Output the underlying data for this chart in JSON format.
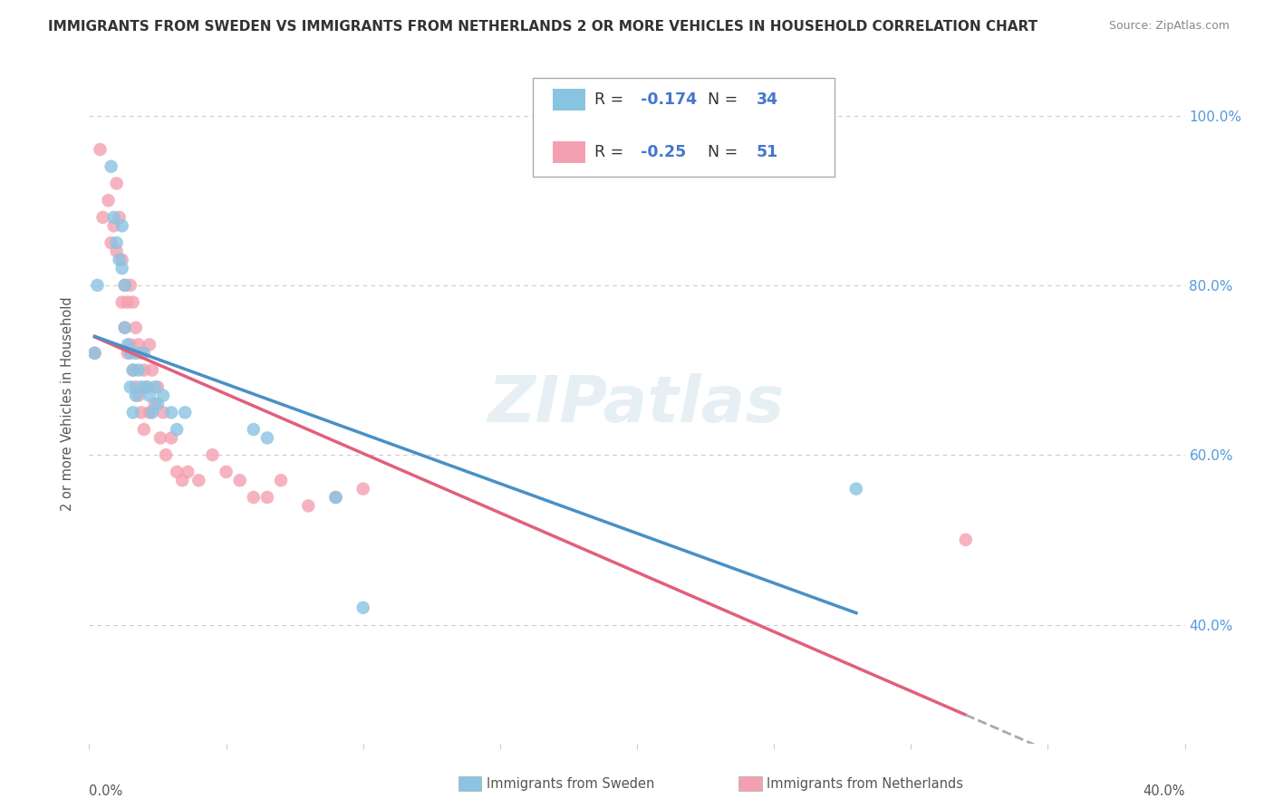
{
  "title": "IMMIGRANTS FROM SWEDEN VS IMMIGRANTS FROM NETHERLANDS 2 OR MORE VEHICLES IN HOUSEHOLD CORRELATION CHART",
  "source": "Source: ZipAtlas.com",
  "ylabel": "2 or more Vehicles in Household",
  "ytick_vals": [
    0.4,
    0.6,
    0.8,
    1.0
  ],
  "xlim": [
    0.0,
    0.4
  ],
  "ylim": [
    0.26,
    1.06
  ],
  "sweden_color": "#89c4e1",
  "sweden_color_dark": "#4a90c4",
  "netherlands_color": "#f4a0b0",
  "netherlands_color_dark": "#e0607a",
  "sweden_R": -0.174,
  "sweden_N": 34,
  "netherlands_R": -0.25,
  "netherlands_N": 51,
  "watermark": "ZIPatlas",
  "legend_label_sweden": "Immigrants from Sweden",
  "legend_label_netherlands": "Immigrants from Netherlands",
  "sweden_x": [
    0.002,
    0.003,
    0.008,
    0.009,
    0.01,
    0.011,
    0.012,
    0.012,
    0.013,
    0.013,
    0.014,
    0.015,
    0.015,
    0.016,
    0.016,
    0.017,
    0.017,
    0.018,
    0.019,
    0.02,
    0.021,
    0.022,
    0.023,
    0.024,
    0.025,
    0.027,
    0.03,
    0.032,
    0.035,
    0.06,
    0.065,
    0.09,
    0.1,
    0.28
  ],
  "sweden_y": [
    0.72,
    0.8,
    0.94,
    0.88,
    0.85,
    0.83,
    0.87,
    0.82,
    0.8,
    0.75,
    0.73,
    0.72,
    0.68,
    0.7,
    0.65,
    0.72,
    0.67,
    0.7,
    0.68,
    0.72,
    0.68,
    0.67,
    0.65,
    0.68,
    0.66,
    0.67,
    0.65,
    0.63,
    0.65,
    0.63,
    0.62,
    0.55,
    0.42,
    0.56
  ],
  "netherlands_x": [
    0.002,
    0.004,
    0.005,
    0.007,
    0.008,
    0.009,
    0.01,
    0.01,
    0.011,
    0.012,
    0.012,
    0.013,
    0.013,
    0.014,
    0.014,
    0.015,
    0.015,
    0.016,
    0.016,
    0.017,
    0.017,
    0.018,
    0.018,
    0.019,
    0.019,
    0.02,
    0.02,
    0.021,
    0.022,
    0.022,
    0.023,
    0.024,
    0.025,
    0.026,
    0.027,
    0.028,
    0.03,
    0.032,
    0.034,
    0.036,
    0.04,
    0.045,
    0.05,
    0.055,
    0.06,
    0.065,
    0.07,
    0.08,
    0.09,
    0.1,
    0.32
  ],
  "netherlands_y": [
    0.72,
    0.96,
    0.88,
    0.9,
    0.85,
    0.87,
    0.92,
    0.84,
    0.88,
    0.83,
    0.78,
    0.8,
    0.75,
    0.78,
    0.72,
    0.8,
    0.73,
    0.78,
    0.7,
    0.75,
    0.68,
    0.73,
    0.67,
    0.72,
    0.65,
    0.7,
    0.63,
    0.68,
    0.73,
    0.65,
    0.7,
    0.66,
    0.68,
    0.62,
    0.65,
    0.6,
    0.62,
    0.58,
    0.57,
    0.58,
    0.57,
    0.6,
    0.58,
    0.57,
    0.55,
    0.55,
    0.57,
    0.54,
    0.55,
    0.56,
    0.5
  ]
}
